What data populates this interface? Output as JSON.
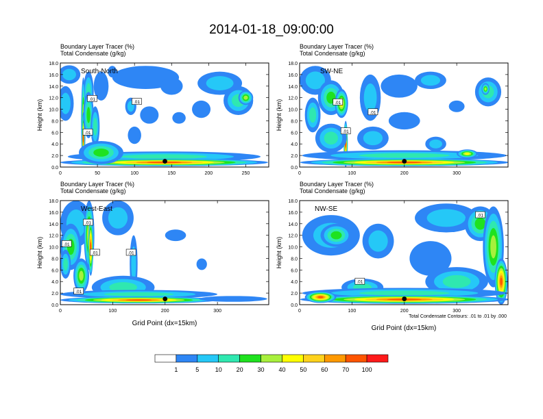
{
  "page_title": "2014-01-18_09:00:00",
  "chart_data": [
    {
      "type": "heatmap",
      "panel": "top-left",
      "section_label": "South-North",
      "title_line1": "Boundary Layer Tracer   (%)",
      "title_line2": "Total Condensate   (g/kg)",
      "ylabel": "Height (km)",
      "xlabel": "",
      "xlim": [
        0,
        281
      ],
      "ylim": [
        0,
        18
      ],
      "xticks": [
        0,
        50,
        100,
        150,
        200,
        250
      ],
      "yticks": [
        0.0,
        2.0,
        4.0,
        6.0,
        8.0,
        10.0,
        12.0,
        14.0,
        16.0,
        18.0
      ],
      "contour_labels": [
        {
          "text": ".01",
          "x": 43,
          "y": 11.8
        },
        {
          "text": ".01",
          "x": 103,
          "y": 11.3
        },
        {
          "text": ".01",
          "x": 37,
          "y": 6.0
        }
      ],
      "marker": {
        "x": 141,
        "y": 1.0
      },
      "features": [
        {
          "x": 7,
          "y": 11,
          "w": 22,
          "h": 6,
          "level": 2
        },
        {
          "x": 12,
          "y": 16,
          "w": 30,
          "h": 3.2,
          "level": 2
        },
        {
          "x": 38,
          "y": 13,
          "w": 14,
          "h": 7,
          "level": 3
        },
        {
          "x": 31,
          "y": 8,
          "w": 6,
          "h": 15,
          "level": 6
        },
        {
          "x": 31,
          "y": 5,
          "w": 4,
          "h": 9,
          "level": 9
        },
        {
          "x": 38,
          "y": 9,
          "w": 14,
          "h": 8,
          "level": 4
        },
        {
          "x": 47,
          "y": 7,
          "w": 12,
          "h": 7,
          "level": 3
        },
        {
          "x": 55,
          "y": 14,
          "w": 20,
          "h": 5,
          "level": 1
        },
        {
          "x": 70,
          "y": 16.5,
          "w": 12,
          "h": 2,
          "level": 1
        },
        {
          "x": 95,
          "y": 10.5,
          "w": 15,
          "h": 3,
          "level": 2
        },
        {
          "x": 115,
          "y": 15.5,
          "w": 90,
          "h": 4,
          "level": 1
        },
        {
          "x": 150,
          "y": 14,
          "w": 30,
          "h": 3,
          "level": 1
        },
        {
          "x": 215,
          "y": 14.5,
          "w": 60,
          "h": 4,
          "level": 2
        },
        {
          "x": 240,
          "y": 11.5,
          "w": 40,
          "h": 5,
          "level": 3
        },
        {
          "x": 250,
          "y": 12,
          "w": 20,
          "h": 2.5,
          "level": 5
        },
        {
          "x": 190,
          "y": 10,
          "w": 25,
          "h": 3,
          "level": 1
        },
        {
          "x": 120,
          "y": 9,
          "w": 25,
          "h": 3,
          "level": 1
        },
        {
          "x": 160,
          "y": 8.5,
          "w": 18,
          "h": 2,
          "level": 1
        },
        {
          "x": 100,
          "y": 5.5,
          "w": 18,
          "h": 3,
          "level": 1
        },
        {
          "x": 140,
          "y": 1.8,
          "w": 260,
          "h": 1.8,
          "level": 3
        },
        {
          "x": 140,
          "y": 0.8,
          "w": 280,
          "h": 1.3,
          "level": 9
        },
        {
          "x": 55,
          "y": 2.5,
          "w": 60,
          "h": 4,
          "level": 4
        }
      ]
    },
    {
      "type": "heatmap",
      "panel": "top-right",
      "section_label": "SW-NE",
      "title_line1": "Boundary Layer Tracer   (%)",
      "title_line2": "Total Condensate   (g/kg)",
      "ylabel": "Height (km)",
      "xlabel": "",
      "xlim": [
        0,
        398
      ],
      "ylim": [
        0,
        18
      ],
      "xticks": [
        0,
        100,
        200,
        300
      ],
      "yticks": [
        0.0,
        2.0,
        4.0,
        6.0,
        8.0,
        10.0,
        12.0,
        14.0,
        16.0,
        18.0
      ],
      "contour_labels": [
        {
          "text": ".01",
          "x": 73,
          "y": 11.2
        },
        {
          "text": ".01",
          "x": 140,
          "y": 9.5
        },
        {
          "text": ".01",
          "x": 88,
          "y": 6.2
        }
      ],
      "marker": {
        "x": 200,
        "y": 1.0
      },
      "features": [
        {
          "x": 30,
          "y": 15,
          "w": 60,
          "h": 5,
          "level": 2
        },
        {
          "x": 60,
          "y": 12,
          "w": 50,
          "h": 6,
          "level": 4
        },
        {
          "x": 80,
          "y": 11,
          "w": 25,
          "h": 5,
          "level": 6
        },
        {
          "x": 88,
          "y": 4,
          "w": 8,
          "h": 8,
          "level": 9
        },
        {
          "x": 60,
          "y": 5,
          "w": 60,
          "h": 5,
          "level": 3
        },
        {
          "x": 25,
          "y": 9,
          "w": 30,
          "h": 6,
          "level": 3
        },
        {
          "x": 135,
          "y": 12,
          "w": 40,
          "h": 8,
          "level": 2
        },
        {
          "x": 190,
          "y": 14,
          "w": 70,
          "h": 4,
          "level": 1
        },
        {
          "x": 250,
          "y": 15,
          "w": 60,
          "h": 3,
          "level": 2
        },
        {
          "x": 360,
          "y": 13,
          "w": 50,
          "h": 5,
          "level": 3
        },
        {
          "x": 355,
          "y": 13.5,
          "w": 15,
          "h": 2,
          "level": 5
        },
        {
          "x": 300,
          "y": 10.5,
          "w": 30,
          "h": 2,
          "level": 1
        },
        {
          "x": 200,
          "y": 8,
          "w": 60,
          "h": 3,
          "level": 1
        },
        {
          "x": 140,
          "y": 5,
          "w": 60,
          "h": 4,
          "level": 2
        },
        {
          "x": 260,
          "y": 4,
          "w": 40,
          "h": 2.5,
          "level": 2
        },
        {
          "x": 200,
          "y": 2,
          "w": 390,
          "h": 1.8,
          "level": 3
        },
        {
          "x": 200,
          "y": 0.8,
          "w": 398,
          "h": 1.3,
          "level": 9
        },
        {
          "x": 320,
          "y": 2.3,
          "w": 40,
          "h": 1.5,
          "level": 6
        }
      ]
    },
    {
      "type": "heatmap",
      "panel": "bottom-left",
      "section_label": "West-East",
      "title_line1": "Boundary Layer Tracer   (%)",
      "title_line2": "Total Condensate   (g/kg)",
      "ylabel": "Height (km)",
      "xlabel": "Grid Point (dx=15km)",
      "xlim": [
        0,
        398
      ],
      "ylim": [
        0,
        18
      ],
      "xticks": [
        0,
        100,
        200,
        300
      ],
      "yticks": [
        0.0,
        2.0,
        4.0,
        6.0,
        8.0,
        10.0,
        12.0,
        14.0,
        16.0,
        18.0
      ],
      "contour_labels": [
        {
          "text": ".01",
          "x": 53,
          "y": 14.2
        },
        {
          "text": ".01",
          "x": 12,
          "y": 10.5
        },
        {
          "text": ".01",
          "x": 66,
          "y": 9.0
        },
        {
          "text": ".01",
          "x": 135,
          "y": 9.0
        },
        {
          "text": ".01",
          "x": 35,
          "y": 2.3
        }
      ],
      "marker": {
        "x": 200,
        "y": 1.0
      },
      "features": [
        {
          "x": 30,
          "y": 14,
          "w": 60,
          "h": 8,
          "level": 2
        },
        {
          "x": 20,
          "y": 10,
          "w": 40,
          "h": 8,
          "level": 4
        },
        {
          "x": 55,
          "y": 12,
          "w": 20,
          "h": 12,
          "level": 6
        },
        {
          "x": 58,
          "y": 10,
          "w": 10,
          "h": 10,
          "level": 9
        },
        {
          "x": 40,
          "y": 5,
          "w": 30,
          "h": 6,
          "level": 5
        },
        {
          "x": 10,
          "y": 7,
          "w": 20,
          "h": 5,
          "level": 3
        },
        {
          "x": 110,
          "y": 15,
          "w": 60,
          "h": 6,
          "level": 2
        },
        {
          "x": 140,
          "y": 7,
          "w": 15,
          "h": 10,
          "level": 2
        },
        {
          "x": 120,
          "y": 3,
          "w": 120,
          "h": 4,
          "level": 3
        },
        {
          "x": 220,
          "y": 12,
          "w": 40,
          "h": 2,
          "level": 1
        },
        {
          "x": 270,
          "y": 7,
          "w": 20,
          "h": 2,
          "level": 1
        },
        {
          "x": 150,
          "y": 1.8,
          "w": 300,
          "h": 1.5,
          "level": 3
        },
        {
          "x": 150,
          "y": 0.8,
          "w": 300,
          "h": 1.2,
          "level": 9
        },
        {
          "x": 330,
          "y": 1,
          "w": 130,
          "h": 1,
          "level": 1
        }
      ]
    },
    {
      "type": "heatmap",
      "panel": "bottom-right",
      "section_label": "NW-SE",
      "title_line1": "Boundary Layer Tracer   (%)",
      "title_line2": "Total Condensate   (g/kg)",
      "ylabel": "Height (km)",
      "xlabel": "Grid Point (dx=15km)",
      "xlim": [
        0,
        398
      ],
      "ylim": [
        0,
        18
      ],
      "xticks": [
        0,
        100,
        200,
        300
      ],
      "yticks": [
        0.0,
        2.0,
        4.0,
        6.0,
        8.0,
        10.0,
        12.0,
        14.0,
        16.0,
        18.0
      ],
      "contour_labels": [
        {
          "text": ".01",
          "x": 345,
          "y": 15.5
        },
        {
          "text": ".01",
          "x": 115,
          "y": 4.0
        }
      ],
      "marker": {
        "x": 200,
        "y": 1.0
      },
      "footnote": "Total Condensate Contours: .01 to .01 by .000",
      "features": [
        {
          "x": 60,
          "y": 12,
          "w": 110,
          "h": 7,
          "level": 2
        },
        {
          "x": 70,
          "y": 12,
          "w": 60,
          "h": 4,
          "level": 4
        },
        {
          "x": 150,
          "y": 11,
          "w": 60,
          "h": 6,
          "level": 2
        },
        {
          "x": 280,
          "y": 15,
          "w": 120,
          "h": 5,
          "level": 2
        },
        {
          "x": 345,
          "y": 14,
          "w": 60,
          "h": 6,
          "level": 4
        },
        {
          "x": 370,
          "y": 10,
          "w": 40,
          "h": 14,
          "level": 5
        },
        {
          "x": 385,
          "y": 4,
          "w": 25,
          "h": 8,
          "level": 9
        },
        {
          "x": 250,
          "y": 8,
          "w": 80,
          "h": 6,
          "level": 1
        },
        {
          "x": 300,
          "y": 4,
          "w": 120,
          "h": 5,
          "level": 3
        },
        {
          "x": 120,
          "y": 3,
          "w": 80,
          "h": 3,
          "level": 3
        },
        {
          "x": 200,
          "y": 2,
          "w": 390,
          "h": 1.8,
          "level": 3
        },
        {
          "x": 200,
          "y": 0.9,
          "w": 398,
          "h": 1.5,
          "level": 9
        },
        {
          "x": 40,
          "y": 1.3,
          "w": 60,
          "h": 2,
          "level": 9
        }
      ]
    }
  ],
  "colorbar": {
    "levels": [
      "1",
      "5",
      "10",
      "20",
      "30",
      "40",
      "50",
      "60",
      "70",
      "100"
    ],
    "colors": [
      "#ffffff",
      "#2e86f5",
      "#25c8f7",
      "#2fe8b0",
      "#1fe21f",
      "#a8f03c",
      "#ffff00",
      "#ffd21c",
      "#ff9900",
      "#ff5500",
      "#ff1a1a"
    ]
  }
}
